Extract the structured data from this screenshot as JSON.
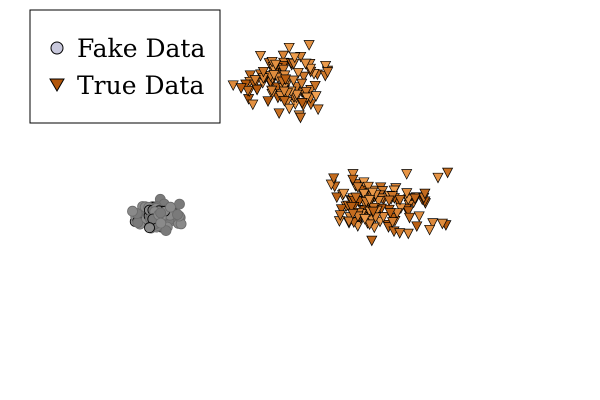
{
  "chart_data": {
    "type": "scatter",
    "title": "",
    "xlabel": "",
    "ylabel": "",
    "axes_visible": false,
    "grid": false,
    "legend_position": "top-left",
    "xlim": [
      -3.6,
      3.6
    ],
    "ylim": [
      -3.0,
      2.55
    ],
    "series": [
      {
        "name": "Fake Data",
        "marker": "circle",
        "fill": "#c8c8dc",
        "stroke": "#000000",
        "center": [
          -1.7,
          -0.46
        ],
        "spread": [
          0.11,
          0.09
        ],
        "count": 150,
        "seed": 11
      },
      {
        "name": "True Data",
        "marker": "triangle-down",
        "fill_dark": "#b2560a",
        "fill_light": "#f0a050",
        "stroke": "#000000",
        "clusters": [
          {
            "center": [
              -0.16,
              1.43
            ],
            "spread": [
              0.22,
              0.21
            ],
            "count": 110,
            "seed": 5
          },
          {
            "center": [
              0.93,
              -0.3
            ],
            "spread": [
              0.31,
              0.21
            ],
            "count": 130,
            "seed": 9
          }
        ]
      }
    ]
  }
}
